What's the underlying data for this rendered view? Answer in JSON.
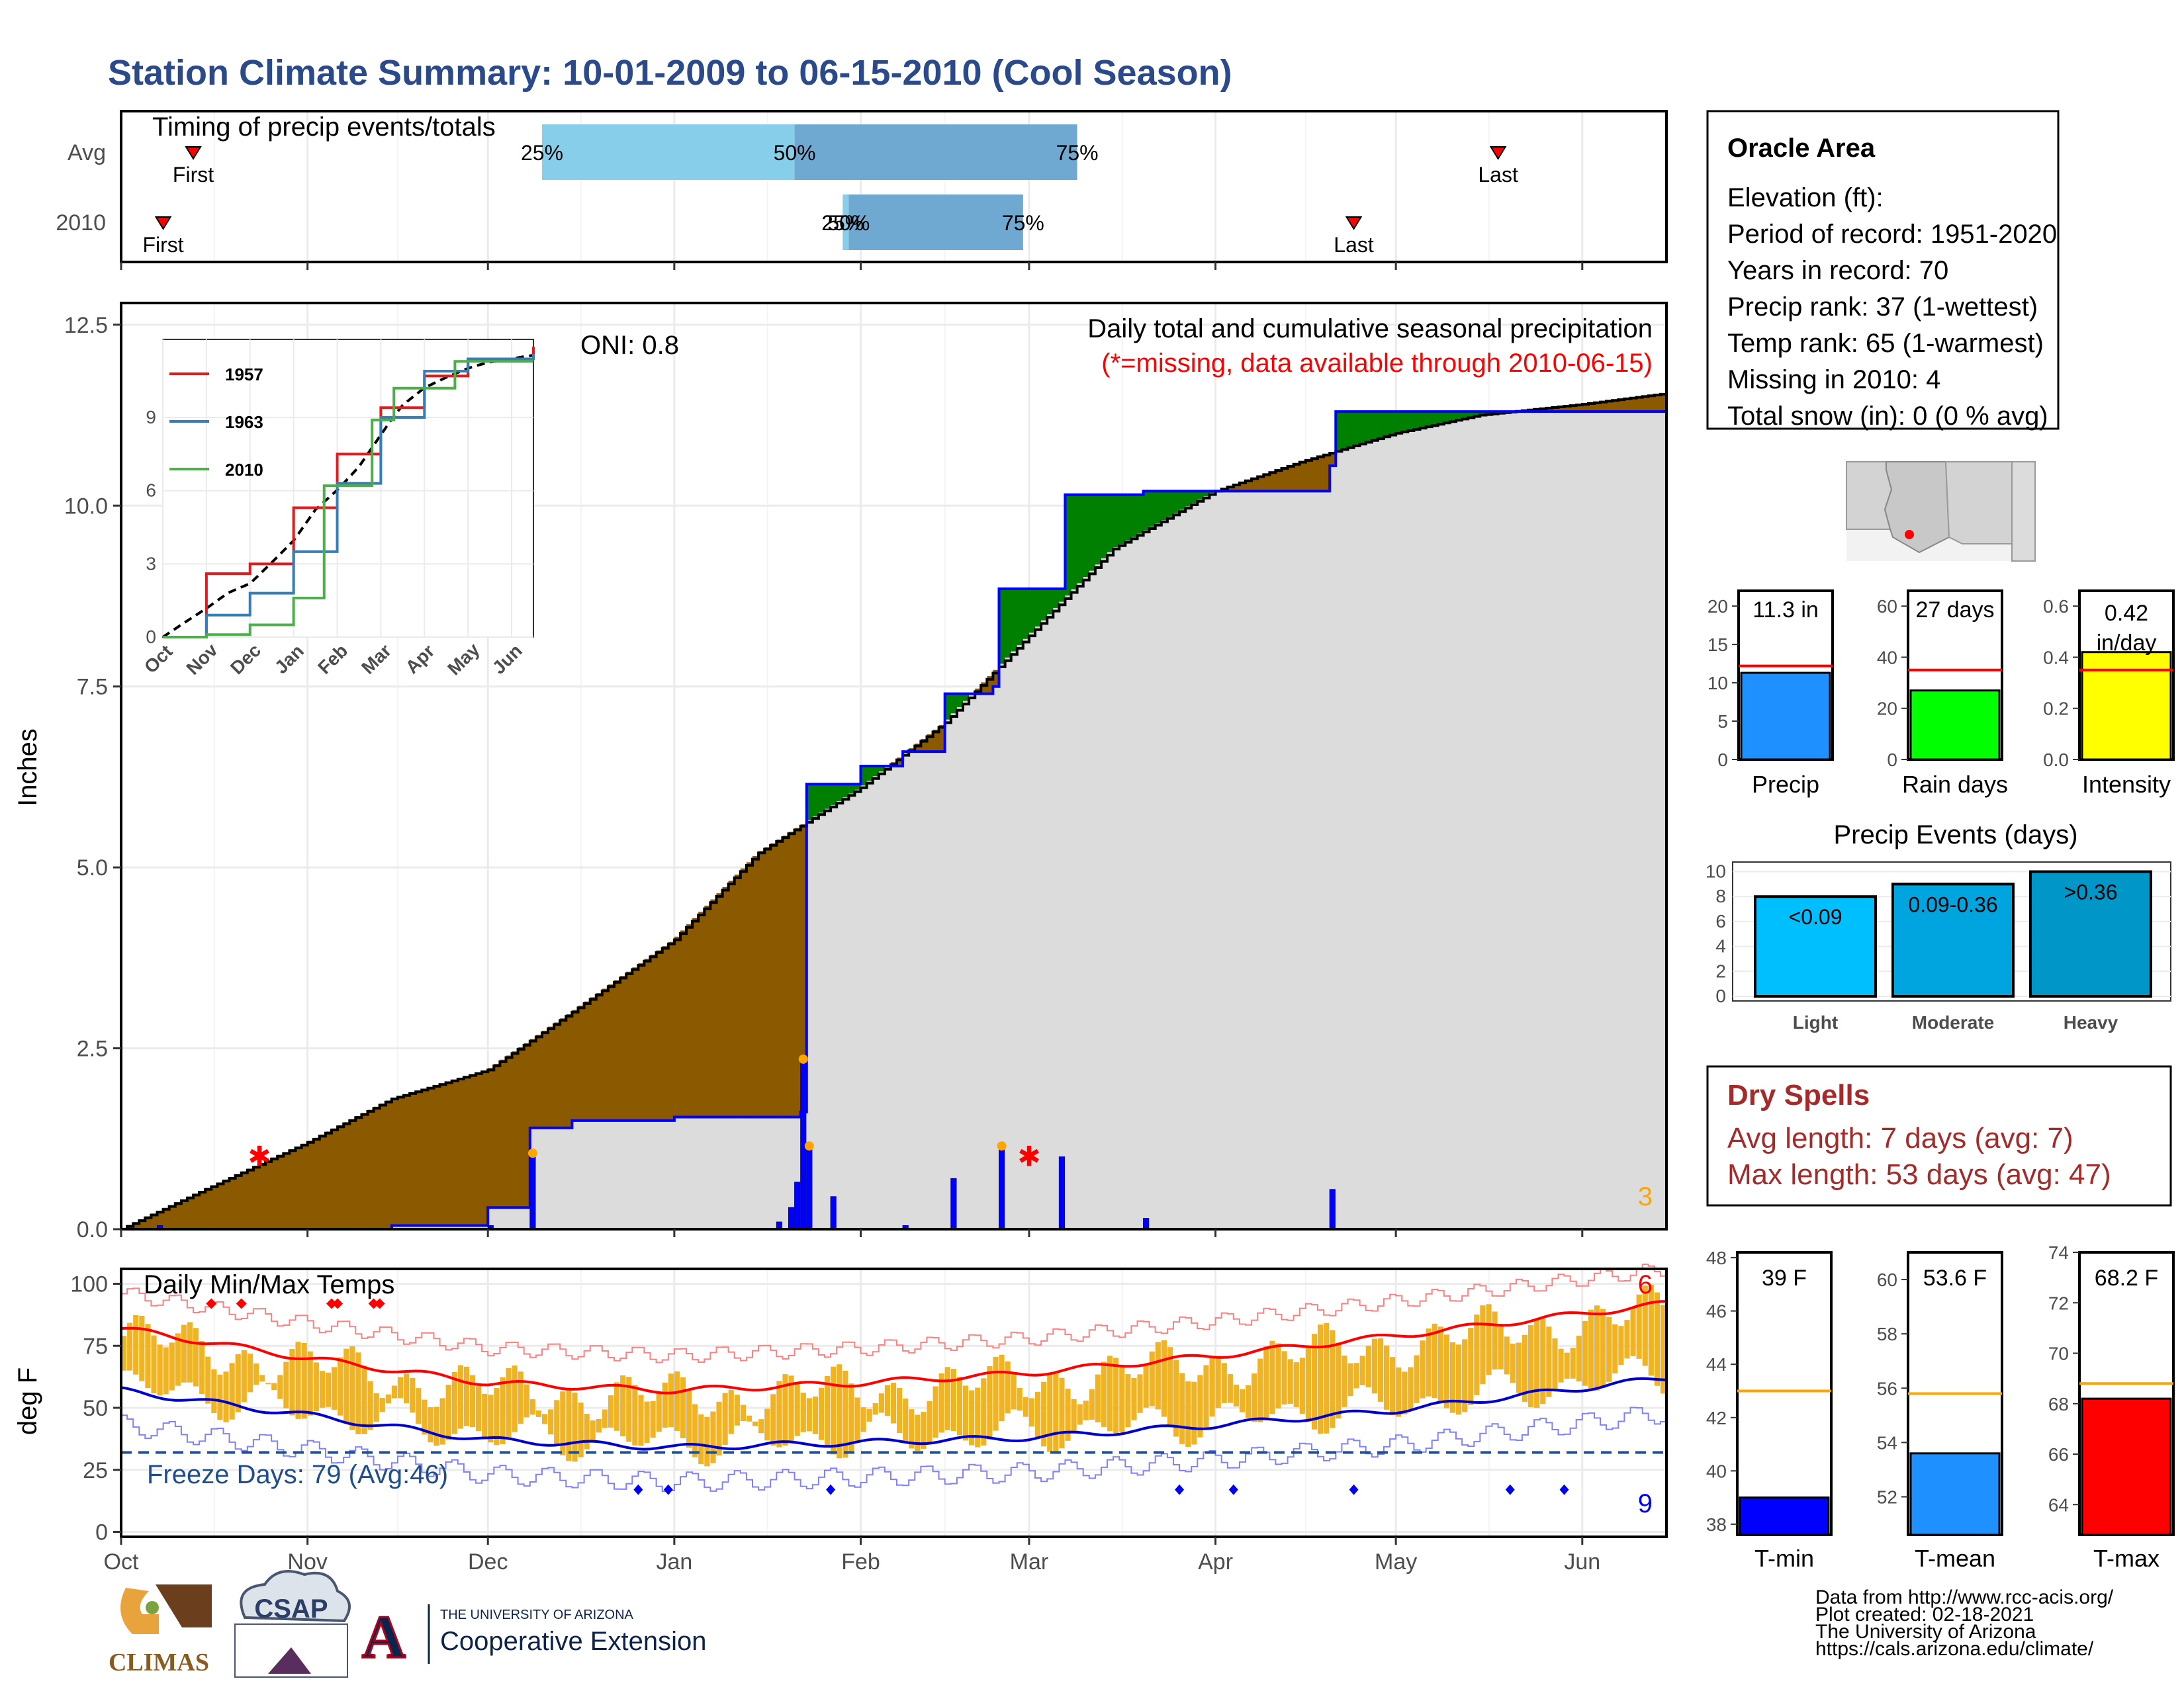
{
  "title": "Station Climate Summary: 10-01-2009 to 06-15-2010 (Cool Season)",
  "timing_panel": {
    "title": "Timing of precip events/totals",
    "rows": [
      {
        "label": "Avg",
        "first_label": "First",
        "last_label": "Last",
        "p25": "25%",
        "p50": "50%",
        "p75": "75%",
        "first_day": 12,
        "last_day": 229,
        "q25_day": 70,
        "q50_day": 112,
        "q75_day": 159
      },
      {
        "label": "2010",
        "first_label": "First",
        "last_label": "Last",
        "p25": "25%",
        "p50": "50%",
        "p75": "75%",
        "first_day": 7,
        "last_day": 205,
        "q25_day": 120,
        "q50_day": 121,
        "q75_day": 150
      }
    ]
  },
  "x_months": [
    "Oct",
    "Nov",
    "Dec",
    "Jan",
    "Feb",
    "Mar",
    "Apr",
    "May",
    "Jun"
  ],
  "precip_panel": {
    "ylabel": "Inches",
    "yticks": [
      "0.0",
      "2.5",
      "5.0",
      "7.5",
      "10.0",
      "12.5"
    ],
    "oni": "ONI: 0.8",
    "caption": "Daily total and cumulative seasonal precipitation",
    "missing_note": "(*=missing, data available through 2010-06-15)",
    "corner_count": "3",
    "colors": {
      "avg_fill": "#8b5a00",
      "obs_line": "#0000ff",
      "above_fill": "#008000",
      "below_fill": "#dcdcdc"
    }
  },
  "inset": {
    "legend": [
      "1957",
      "1963",
      "2010"
    ],
    "legend_colors": [
      "#e41a1c",
      "#377eb8",
      "#4daf4a"
    ],
    "yticks": [
      "0",
      "3",
      "6",
      "9"
    ],
    "xticks": [
      "Oct",
      "Nov",
      "Dec",
      "Jan",
      "Feb",
      "Mar",
      "Apr",
      "May",
      "Jun"
    ]
  },
  "temp_panel": {
    "ylabel": "deg F",
    "yticks": [
      "0",
      "25",
      "50",
      "75",
      "100"
    ],
    "title": "Daily Min/Max Temps",
    "freeze_days": "Freeze Days: 79 (Avg:46)",
    "top_count": "6",
    "bottom_count": "9"
  },
  "info_box": {
    "name": "Oracle Area",
    "lines": [
      "Elevation (ft):",
      "Period of record: 1951-2020",
      "Years in record: 70",
      "Precip rank: 37 (1-wettest)",
      "Temp rank: 65 (1-warmest)",
      "Missing in 2010: 4",
      "Total snow (in): 0 (0 % avg)"
    ]
  },
  "summary_bars": [
    {
      "label": "Precip",
      "value_text": "11.3 in",
      "value": 11.3,
      "avg": 12.2,
      "ymax": 22,
      "ticks": [
        "0",
        "5",
        "10",
        "15",
        "20"
      ],
      "color": "#1e90ff"
    },
    {
      "label": "Rain days",
      "value_text": "27 days",
      "value": 27,
      "avg": 35,
      "ymax": 66,
      "ticks": [
        "0",
        "20",
        "40",
        "60"
      ],
      "color": "#00ff00"
    },
    {
      "label": "Intensity",
      "value_text": "0.42 in/day",
      "value_line1": "0.42",
      "value_line2": "in/day",
      "value": 0.42,
      "avg": 0.35,
      "ymax": 0.66,
      "ticks": [
        "0.0",
        "0.2",
        "0.4",
        "0.6"
      ],
      "color": "#ffff00"
    }
  ],
  "events": {
    "title": "Precip Events (days)",
    "yticks": [
      "0",
      "2",
      "4",
      "6",
      "8",
      "10"
    ],
    "bars": [
      {
        "label": "Light",
        "range": "<0.09",
        "value": 8,
        "color": "#00bfff"
      },
      {
        "label": "Moderate",
        "range": "0.09-0.36",
        "value": 9,
        "color": "#00a5e0"
      },
      {
        "label": "Heavy",
        "range": ">0.36",
        "value": 10,
        "color": "#0096c8"
      }
    ]
  },
  "dry_spells": {
    "title": "Dry Spells",
    "avg_line": "Avg length: 7 days (avg: 7)",
    "max_line": "Max length: 53 days (avg: 47)"
  },
  "temp_bars": [
    {
      "label": "T-min",
      "value_text": "39 F",
      "value": 39,
      "avg": 43,
      "ymin": 37.6,
      "ymax": 48.2,
      "ticks": [
        "38",
        "40",
        "42",
        "44",
        "46",
        "48"
      ],
      "color": "#0000ff"
    },
    {
      "label": "T-mean",
      "value_text": "53.6 F",
      "value": 53.6,
      "avg": 55.8,
      "ymin": 50.6,
      "ymax": 61.0,
      "ticks": [
        "52",
        "54",
        "56",
        "58",
        "60"
      ],
      "color": "#1e90ff"
    },
    {
      "label": "T-max",
      "value_text": "68.2 F",
      "value": 68.2,
      "avg": 68.8,
      "ymin": 62.8,
      "ymax": 74.0,
      "ticks": [
        "64",
        "66",
        "68",
        "70",
        "72",
        "74"
      ],
      "color": "#ff0000"
    }
  ],
  "footer": {
    "lines": [
      "Data from http://www.rcc-acis.org/",
      "Plot created: 02-18-2021",
      "The University of Arizona",
      "https://cals.arizona.edu/climate/"
    ],
    "logos": {
      "climas": "CLIMAS",
      "csap": "CSAP",
      "ua_small": "THE UNIVERSITY OF ARIZONA",
      "ua_big": "Cooperative Extension",
      "ua_letter": "A"
    }
  },
  "chart_data": [
    {
      "type": "area",
      "title": "Daily total and cumulative seasonal precipitation",
      "ylabel": "Inches",
      "ylim": [
        0,
        12.5
      ],
      "x_range": [
        "2009-10-01",
        "2010-06-15"
      ],
      "series": [
        {
          "name": "average cumulative",
          "points": [
            [
              "2009-10-01",
              0.0
            ],
            [
              "2009-10-15",
              0.55
            ],
            [
              "2009-11-01",
              1.2
            ],
            [
              "2009-11-15",
              1.8
            ],
            [
              "2009-12-01",
              2.2
            ],
            [
              "2009-12-15",
              3.0
            ],
            [
              "2010-01-01",
              4.0
            ],
            [
              "2010-01-15",
              5.2
            ],
            [
              "2010-02-01",
              6.1
            ],
            [
              "2010-02-15",
              7.0
            ],
            [
              "2010-03-01",
              8.2
            ],
            [
              "2010-03-15",
              9.4
            ],
            [
              "2010-04-01",
              10.2
            ],
            [
              "2010-04-15",
              10.6
            ],
            [
              "2010-05-01",
              11.0
            ],
            [
              "2010-05-15",
              11.25
            ],
            [
              "2010-06-01",
              11.4
            ],
            [
              "2010-06-15",
              11.55
            ]
          ]
        },
        {
          "name": "observed cumulative 2010",
          "points": [
            [
              "2009-10-01",
              0.0
            ],
            [
              "2009-11-15",
              0.05
            ],
            [
              "2009-12-01",
              0.05
            ],
            [
              "2009-12-01",
              0.3
            ],
            [
              "2009-12-08",
              1.4
            ],
            [
              "2009-12-15",
              1.5
            ],
            [
              "2010-01-01",
              1.55
            ],
            [
              "2010-01-16",
              1.55
            ],
            [
              "2010-01-22",
              1.62
            ],
            [
              "2010-01-23",
              6.15
            ],
            [
              "2010-02-01",
              6.4
            ],
            [
              "2010-02-08",
              6.6
            ],
            [
              "2010-02-15",
              7.4
            ],
            [
              "2010-02-23",
              7.5
            ],
            [
              "2010-02-24",
              8.85
            ],
            [
              "2010-03-07",
              8.85
            ],
            [
              "2010-03-07",
              10.15
            ],
            [
              "2010-03-20",
              10.2
            ],
            [
              "2010-04-20",
              10.55
            ],
            [
              "2010-04-21",
              11.3
            ],
            [
              "2010-06-15",
              11.3
            ]
          ]
        },
        {
          "name": "daily precip",
          "points": [
            [
              "2009-10-07",
              0.05
            ],
            [
              "2009-12-01",
              0.05
            ],
            [
              "2009-12-08",
              1.05
            ],
            [
              "2010-01-18",
              0.1
            ],
            [
              "2010-01-20",
              0.3
            ],
            [
              "2010-01-21",
              0.65
            ],
            [
              "2010-01-22",
              2.35
            ],
            [
              "2010-01-23",
              1.15
            ],
            [
              "2010-01-27",
              0.45
            ],
            [
              "2010-02-08",
              0.05
            ],
            [
              "2010-02-16",
              0.7
            ],
            [
              "2010-02-24",
              1.15
            ],
            [
              "2010-03-06",
              1.0
            ],
            [
              "2010-03-20",
              0.15
            ],
            [
              "2010-04-20",
              0.55
            ]
          ]
        }
      ]
    },
    {
      "type": "line",
      "title": "",
      "x_range": [
        "Oct",
        "Jun"
      ],
      "ylim": [
        0,
        12
      ],
      "series": [
        {
          "name": "1957",
          "points": [
            [
              0,
              0
            ],
            [
              1,
              2.6
            ],
            [
              2,
              3.0
            ],
            [
              3,
              5.3
            ],
            [
              4,
              7.5
            ],
            [
              5,
              9.4
            ],
            [
              6,
              10.7
            ],
            [
              7,
              11.4
            ],
            [
              8.5,
              11.9
            ]
          ]
        },
        {
          "name": "1963",
          "points": [
            [
              0,
              0
            ],
            [
              1,
              0.9
            ],
            [
              2,
              1.8
            ],
            [
              3,
              3.5
            ],
            [
              4,
              6.3
            ],
            [
              5,
              9.0
            ],
            [
              6,
              10.9
            ],
            [
              7,
              11.4
            ],
            [
              8.5,
              11.6
            ]
          ]
        },
        {
          "name": "2010",
          "points": [
            [
              0,
              0
            ],
            [
              1,
              0.1
            ],
            [
              2,
              0.5
            ],
            [
              3,
              1.6
            ],
            [
              3.7,
              6.2
            ],
            [
              4.8,
              8.9
            ],
            [
              5.3,
              10.2
            ],
            [
              6.7,
              11.3
            ],
            [
              8.5,
              11.3
            ]
          ]
        }
      ]
    },
    {
      "type": "line",
      "title": "Daily Min/Max Temps",
      "ylabel": "deg F",
      "ylim": [
        0,
        105
      ],
      "series": [
        {
          "name": "avg max",
          "points": [
            [
              "2009-10-01",
              82
            ],
            [
              "2009-11-01",
              70
            ],
            [
              "2009-12-01",
              60
            ],
            [
              "2010-01-01",
              57
            ],
            [
              "2010-02-01",
              60
            ],
            [
              "2010-03-01",
              64
            ],
            [
              "2010-04-01",
              71
            ],
            [
              "2010-05-01",
              79
            ],
            [
              "2010-06-15",
              92
            ]
          ]
        },
        {
          "name": "avg min",
          "points": [
            [
              "2009-10-01",
              57
            ],
            [
              "2009-11-01",
              47
            ],
            [
              "2009-12-01",
              37
            ],
            [
              "2010-01-01",
              34
            ],
            [
              "2010-02-01",
              36
            ],
            [
              "2010-03-01",
              38
            ],
            [
              "2010-04-01",
              43
            ],
            [
              "2010-05-01",
              49
            ],
            [
              "2010-06-15",
              62
            ]
          ]
        },
        {
          "name": "freeze threshold",
          "points": [
            [
              "2009-10-01",
              32
            ],
            [
              "2010-06-15",
              32
            ]
          ]
        }
      ]
    },
    {
      "type": "bar",
      "title": "Precip Events (days)",
      "categories": [
        "Light",
        "Moderate",
        "Heavy"
      ],
      "values": [
        8,
        9,
        10
      ],
      "ylim": [
        0,
        10.5
      ]
    }
  ]
}
